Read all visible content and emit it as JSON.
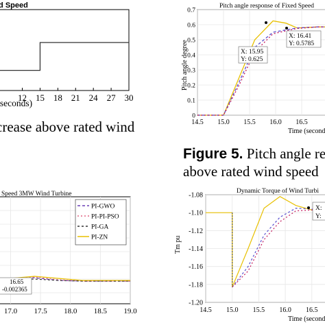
{
  "chart_data": [
    {
      "id": "wind",
      "type": "line",
      "title": "Wind Speed",
      "xlabel": "Time (seconds)",
      "ylabel": "",
      "xlim": [
        8,
        30
      ],
      "xticks": [
        12,
        15,
        18,
        21,
        24,
        27,
        30
      ],
      "series": [
        {
          "x": [
            8,
            15,
            15,
            30
          ],
          "y": [
            0.3,
            0.3,
            1,
            1
          ],
          "color": "#333333"
        }
      ]
    },
    {
      "id": "pitch",
      "type": "line",
      "title": "Pitch angle response of Fixed Speed",
      "xlabel": "Time (seconds)",
      "ylabel": "Pitch angle degree",
      "xlim": [
        14.5,
        17
      ],
      "ylim": [
        0,
        0.7
      ],
      "xticks": [
        "14.5",
        "15.0",
        "15.5",
        "16.0",
        "16.5"
      ],
      "yticks": [
        "0",
        "0.1",
        "0.2",
        "0.3",
        "0.4",
        "0.5",
        "0.6",
        "0.7"
      ],
      "series": [
        {
          "x": [
            14.5,
            15.0,
            15.3,
            15.6,
            15.95,
            16.2,
            16.41,
            16.8,
            17.0
          ],
          "y": [
            0,
            0,
            0.25,
            0.5,
            0.625,
            0.61,
            0.5785,
            0.585,
            0.585
          ],
          "color": "#e8c000"
        },
        {
          "x": [
            14.5,
            15.0,
            15.3,
            15.6,
            15.95,
            16.41,
            16.8,
            17.0
          ],
          "y": [
            0,
            0,
            0.22,
            0.45,
            0.55,
            0.5785,
            0.585,
            0.585
          ],
          "color": "#5a4fcf",
          "dash": "4,3"
        },
        {
          "x": [
            14.5,
            15.0,
            15.3,
            15.6,
            15.95,
            16.41,
            16.8,
            17.0
          ],
          "y": [
            0,
            0,
            0.2,
            0.42,
            0.54,
            0.575,
            0.585,
            0.585
          ],
          "color": "#c2185b",
          "dash": "2,3"
        }
      ],
      "annotations": [
        {
          "x_label": "X: 15.95",
          "y_label": "Y: 0.625"
        },
        {
          "x_label": "X: 16.41",
          "y_label": "Y: 0.5785"
        }
      ]
    },
    {
      "id": "speed",
      "type": "line",
      "title": "Speed 3MW Wind Turbine",
      "xlabel": "",
      "ylabel": "",
      "xlim": [
        16.8,
        19
      ],
      "xticks": [
        "17.0",
        "17.5",
        "18.0",
        "18.5",
        "19.0"
      ],
      "legend": [
        "PI-GWO",
        "PI-PI-PSO",
        "PI-GA",
        "PI-ZN"
      ],
      "legend_colors": [
        "#6a3fb5",
        "#e06080",
        "#333333",
        "#e8c000"
      ],
      "series": [
        {
          "name": "PI-GWO",
          "x": [
            16.8,
            17.0,
            17.4,
            17.8,
            18.2,
            19.0
          ],
          "y": [
            0,
            0.1,
            0.25,
            0.05,
            0.0,
            0.0
          ],
          "color": "#6a3fb5",
          "dash": "4,3"
        },
        {
          "name": "PI-PI-PSO",
          "x": [
            16.8,
            17.0,
            17.4,
            17.8,
            18.2,
            19.0
          ],
          "y": [
            0,
            0.15,
            0.3,
            0.1,
            0.0,
            0.0
          ],
          "color": "#e06080",
          "dash": "2,3"
        },
        {
          "name": "PI-GA",
          "x": [
            16.8,
            17.0,
            17.4,
            17.8,
            18.2,
            19.0
          ],
          "y": [
            0,
            0.05,
            0.15,
            0.05,
            0.0,
            0.0
          ],
          "color": "#333333",
          "dash": "3,3"
        },
        {
          "name": "PI-ZN",
          "x": [
            16.8,
            17.0,
            17.4,
            17.8,
            18.2,
            19.0
          ],
          "y": [
            0,
            0.2,
            0.35,
            0.2,
            0.05,
            0.05
          ],
          "color": "#e8c000"
        }
      ],
      "annotations": [
        {
          "x_label": "16.65",
          "y_label": "-0.002365"
        }
      ]
    },
    {
      "id": "torque",
      "type": "line",
      "title": "Dynamic Torque of Wind Turbi",
      "xlabel": "Time (seconds)",
      "ylabel": "Tm pu",
      "xlim": [
        14.5,
        16.8
      ],
      "ylim": [
        -1.2,
        -1.08
      ],
      "xticks": [
        "14.5",
        "15.0",
        "15.5",
        "16.0",
        "16.5"
      ],
      "yticks": [
        "-1.08",
        "-1.10",
        "-1.12",
        "-1.14",
        "-1.16",
        "-1.18",
        "-1.20"
      ],
      "series": [
        {
          "x": [
            14.5,
            15.0,
            15.0,
            15.3,
            15.6,
            15.9,
            16.2,
            16.5,
            16.8
          ],
          "y": [
            -1.1,
            -1.1,
            -1.183,
            -1.14,
            -1.095,
            -1.082,
            -1.092,
            -1.097,
            -1.099
          ],
          "color": "#e8c000"
        },
        {
          "x": [
            15.0,
            15.3,
            15.6,
            15.9,
            16.2,
            16.5,
            16.8
          ],
          "y": [
            -1.183,
            -1.16,
            -1.125,
            -1.105,
            -1.095,
            -1.096,
            -1.098
          ],
          "color": "#5a4fcf",
          "dash": "3,3"
        },
        {
          "x": [
            15.0,
            15.3,
            15.6,
            15.9,
            16.2,
            16.5,
            16.8
          ],
          "y": [
            -1.183,
            -1.165,
            -1.13,
            -1.11,
            -1.098,
            -1.097,
            -1.098
          ],
          "color": "#c2185b",
          "dash": "2,3"
        },
        {
          "x": [
            15.0,
            15.0
          ],
          "y": [
            -1.1,
            -1.183
          ],
          "color": "#555555",
          "dash": "2,2"
        }
      ],
      "annotations": [
        {
          "x_label": "X:",
          "y_label": "Y:"
        }
      ]
    }
  ],
  "captions": {
    "left_top": "crease above rated wind",
    "figure5_bold": "Figure 5.",
    "figure5_rest": " Pitch angle res",
    "figure5_line2": "above rated wind speed"
  }
}
